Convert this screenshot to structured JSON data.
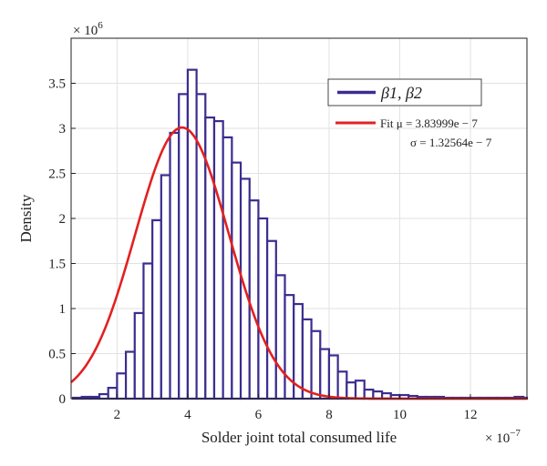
{
  "chart_data": {
    "type": "bar",
    "title": "",
    "xlabel": "Solder joint total consumed life",
    "ylabel": "Density",
    "x_multiplier_label": "× 10",
    "x_multiplier_exp": "−7",
    "y_multiplier_label": "× 10",
    "y_multiplier_exp": "6",
    "xlim": [
      0.7,
      13.6
    ],
    "ylim": [
      0,
      4
    ],
    "x_ticks": [
      2,
      4,
      6,
      8,
      10,
      12
    ],
    "x_tick_labels": [
      "2",
      "4",
      "6",
      "8",
      "10",
      "12"
    ],
    "y_ticks": [
      0,
      0.5,
      1,
      1.5,
      2,
      2.5,
      3,
      3.5
    ],
    "y_tick_labels": [
      "0",
      "0.5",
      "1",
      "1.5",
      "2",
      "2.5",
      "3",
      "3.5"
    ],
    "grid": true,
    "legend_position": "top-right",
    "series": [
      {
        "name": "β1, β2",
        "kind": "histogram",
        "color": "#3b2d8f",
        "bin_width": 0.25,
        "bin_start": 0.75,
        "values": [
          0.01,
          0.02,
          0.02,
          0.05,
          0.12,
          0.28,
          0.52,
          0.95,
          1.5,
          1.98,
          2.48,
          2.95,
          3.38,
          3.65,
          3.38,
          3.12,
          3.08,
          2.9,
          2.62,
          2.44,
          2.2,
          2.0,
          1.75,
          1.37,
          1.15,
          1.05,
          0.88,
          0.75,
          0.55,
          0.48,
          0.3,
          0.18,
          0.2,
          0.1,
          0.08,
          0.06,
          0.04,
          0.04,
          0.03,
          0.02,
          0.02,
          0.02,
          0.01,
          0.01,
          0.01,
          0.01,
          0.01,
          0.01,
          0.01,
          0.01,
          0.02,
          0.01,
          0.01,
          0.01,
          0.01,
          0.01,
          0.01,
          0.01,
          0.01,
          0.01,
          0.01,
          0.01,
          0.01,
          0.01,
          0.01,
          0.01,
          0.01,
          0.01,
          0.01,
          0.01,
          0.01,
          0.01,
          0.01,
          0.01,
          0.01
        ]
      },
      {
        "name": "Fit",
        "kind": "normal_fit",
        "color": "#e32020",
        "mu": 3.83999,
        "sigma": 1.32564
      }
    ],
    "legend": {
      "histogram_label": "β1, β2",
      "fit_prefix": "Fit",
      "mu_text": "μ = 3.83999e − 7",
      "sigma_text": "σ = 1.32564e − 7"
    }
  }
}
